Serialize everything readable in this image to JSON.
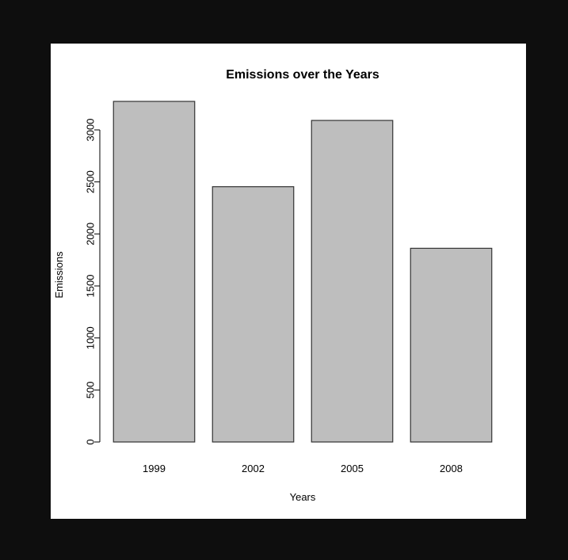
{
  "viewer": {
    "background": "#0e0e0e"
  },
  "chart_data": {
    "type": "bar",
    "title": "Emissions over the Years",
    "xlabel": "Years",
    "ylabel": "Emissions",
    "categories": [
      "1999",
      "2002",
      "2005",
      "2008"
    ],
    "values": [
      3274,
      2454,
      3091,
      1862
    ],
    "ylim": [
      0,
      3274
    ],
    "yticks": [
      0,
      500,
      1000,
      1500,
      2000,
      2500,
      3000
    ],
    "ytick_labels": [
      "0",
      "500",
      "1000",
      "1500",
      "2000",
      "2500",
      "3000"
    ],
    "grid": false,
    "legend": "none",
    "bar_fill": "#bebebe",
    "bar_stroke": "#333333",
    "background": "#ffffff"
  }
}
